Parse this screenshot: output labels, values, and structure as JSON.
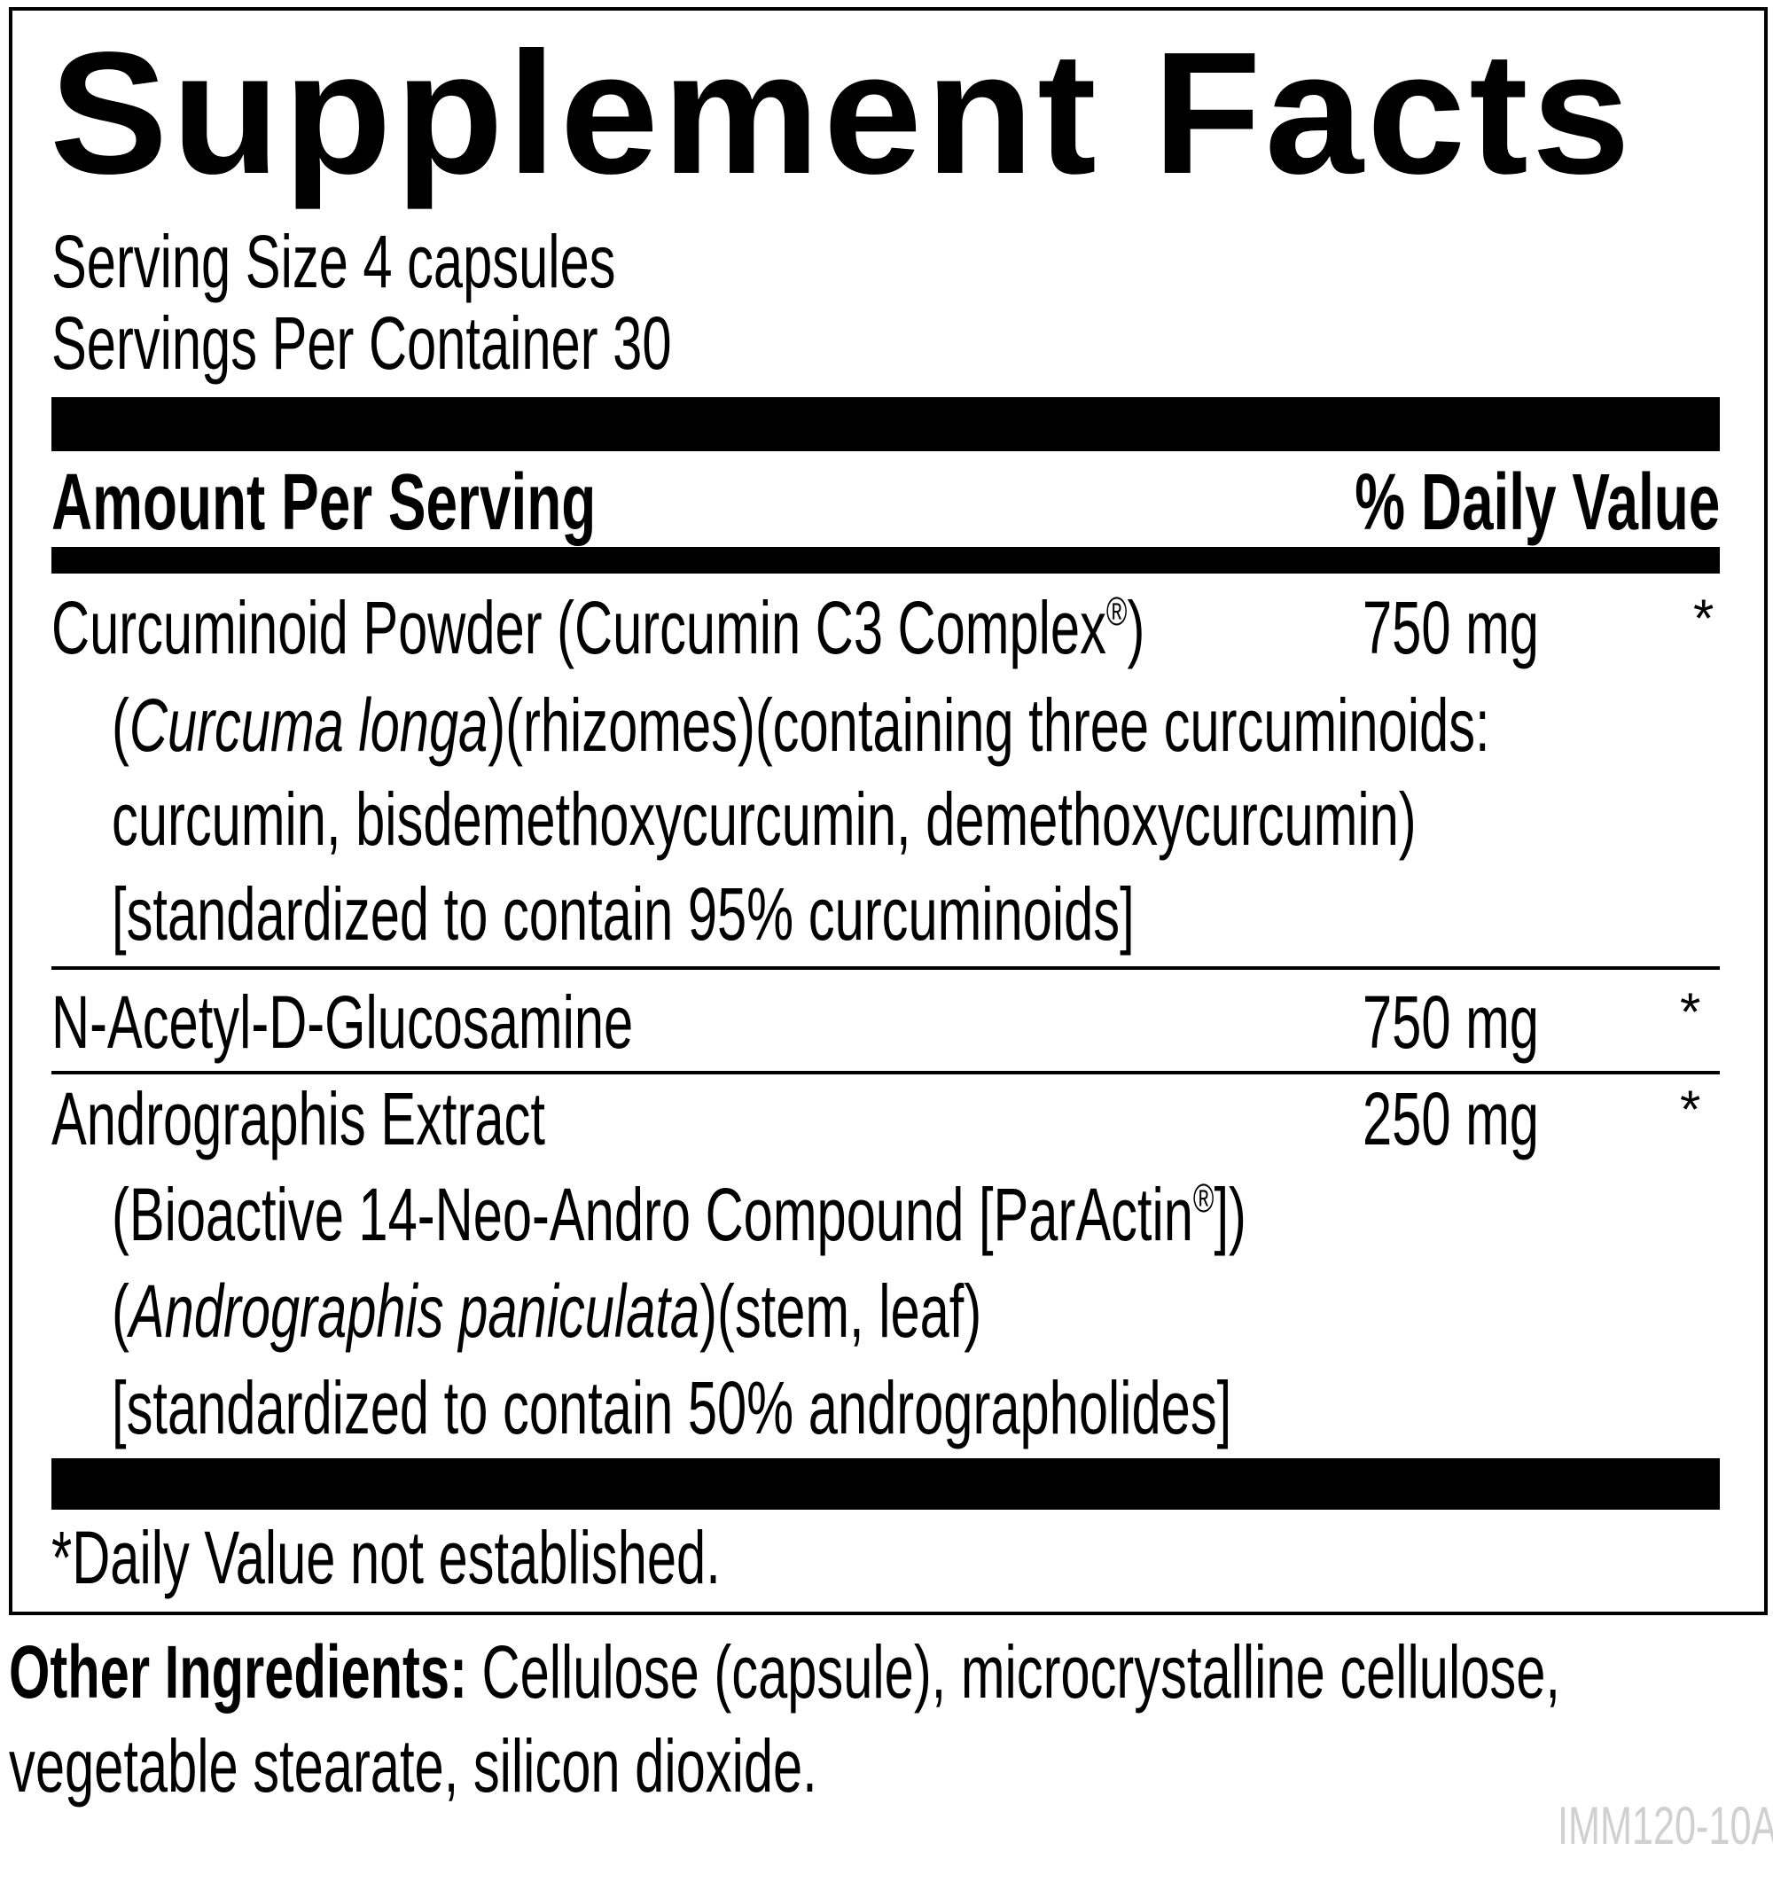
{
  "title": "Supplement Facts",
  "serving_size": "Serving Size 4 capsules",
  "servings_per_container": "Servings Per Container 30",
  "header": {
    "amount": "Amount Per Serving",
    "daily_value": "% Daily Value"
  },
  "ingredients": [
    {
      "name": "Curcuminoid Powder (Curcumin C3 Complex",
      "name_mark": "®",
      "name_end": ")",
      "amount": "750 mg",
      "dv": "*",
      "detail": {
        "l1_open": "(",
        "l1_italic": "Curcuma longa",
        "l1_rest": ")(rhizomes)(containing three curcuminoids:",
        "l2": "curcumin, bisdemethoxycurcumin, demethoxycurcumin)",
        "l3": "[standardized to contain 95% curcuminoids]"
      }
    },
    {
      "name": "N-Acetyl-D-Glucosamine",
      "amount": "750 mg",
      "dv": "*"
    },
    {
      "name": "Andrographis Extract",
      "amount": "250 mg",
      "dv": "*",
      "detail": {
        "l1": "(Bioactive 14-Neo-Andro Compound [ParActin",
        "l1_mark": "®",
        "l1_end": "])",
        "l2_open": "(",
        "l2_italic": "Andrographis paniculata",
        "l2_rest": ")(stem, leaf)",
        "l3": "[standardized to contain 50% andrographolides]"
      }
    }
  ],
  "footnote": "*Daily Value not established.",
  "other_ingredients": {
    "label": "Other Ingredients:",
    "text1": " Cellulose (capsule), microcrystalline cellulose,",
    "text2": "vegetable stearate, silicon dioxide."
  },
  "product_code": "IMM120-10A"
}
